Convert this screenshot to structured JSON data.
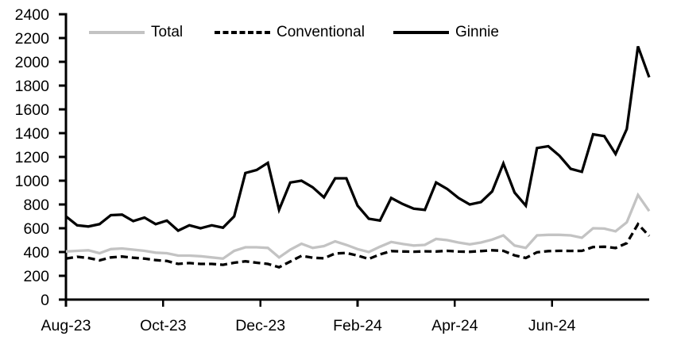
{
  "chart_data": {
    "type": "line",
    "title": "",
    "legend_position": "top",
    "grid": false,
    "background_color": "#ffffff",
    "axis_color": "#000000",
    "x_axis": {
      "tick_labels": [
        "Aug-23",
        "Oct-23",
        "Dec-23",
        "Feb-24",
        "Apr-24",
        "Jun-24"
      ],
      "tick_month_positions": [
        0,
        2,
        4,
        6,
        8,
        10
      ],
      "months_total": 12
    },
    "y_axis": {
      "min": 0,
      "max": 2400,
      "step": 200,
      "tick_labels": [
        "0",
        "200",
        "400",
        "600",
        "800",
        "1000",
        "1200",
        "1400",
        "1600",
        "1800",
        "2000",
        "2200",
        "2400"
      ]
    },
    "series": [
      {
        "name": "Total",
        "color": "#c3c3c3",
        "line_style": "solid",
        "values": [
          405,
          410,
          415,
          390,
          425,
          430,
          420,
          410,
          395,
          390,
          370,
          370,
          365,
          355,
          345,
          410,
          440,
          440,
          435,
          355,
          420,
          470,
          435,
          450,
          490,
          460,
          425,
          400,
          445,
          485,
          468,
          455,
          460,
          510,
          500,
          480,
          465,
          480,
          505,
          540,
          455,
          435,
          540,
          545,
          545,
          540,
          520,
          600,
          597,
          575,
          650,
          880,
          745
        ]
      },
      {
        "name": "Conventional",
        "color": "#000000",
        "line_style": "dashed",
        "values": [
          345,
          360,
          350,
          330,
          355,
          362,
          352,
          345,
          332,
          325,
          300,
          307,
          300,
          300,
          293,
          310,
          322,
          310,
          300,
          272,
          320,
          368,
          352,
          347,
          388,
          392,
          370,
          342,
          380,
          408,
          405,
          403,
          406,
          405,
          410,
          404,
          402,
          408,
          415,
          410,
          372,
          350,
          398,
          408,
          410,
          409,
          410,
          442,
          445,
          434,
          475,
          635,
          535
        ]
      },
      {
        "name": "Ginnie",
        "color": "#000000",
        "line_style": "solid",
        "values": [
          700,
          625,
          615,
          635,
          710,
          715,
          660,
          690,
          635,
          665,
          580,
          625,
          600,
          625,
          605,
          700,
          1065,
          1090,
          1150,
          755,
          985,
          1000,
          945,
          860,
          1020,
          1020,
          790,
          680,
          665,
          855,
          805,
          765,
          755,
          985,
          930,
          855,
          800,
          820,
          910,
          1145,
          900,
          790,
          1275,
          1290,
          1210,
          1100,
          1075,
          1390,
          1375,
          1225,
          1435,
          2130,
          1870
        ]
      }
    ]
  }
}
